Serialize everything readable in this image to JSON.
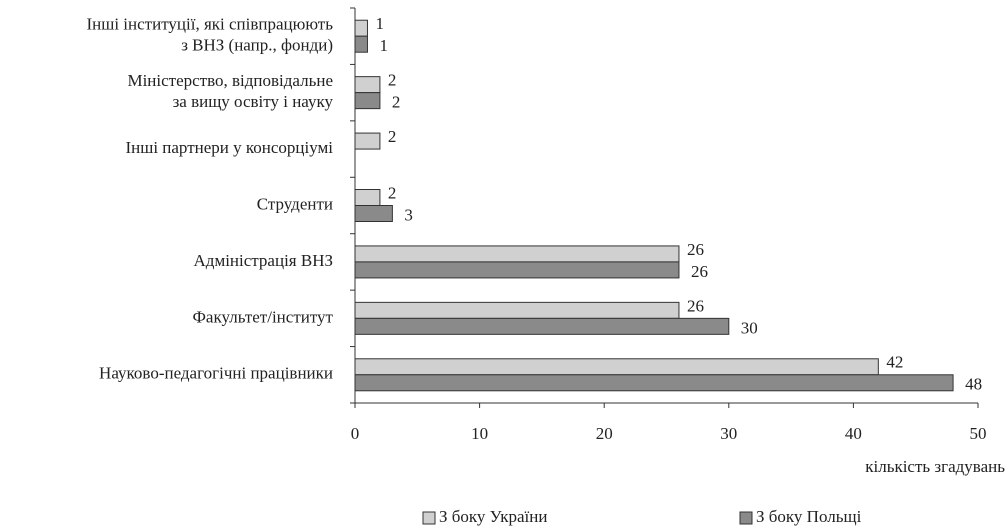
{
  "chart_data": {
    "type": "hbar",
    "categories": [
      [
        "Інші інституції, які співпрацюють",
        "з ВНЗ (напр., фонди)"
      ],
      [
        "Міністерство, відповідальне",
        "за вищу освіту і науку"
      ],
      [
        "Інші партнери у консорціумі"
      ],
      [
        "Струденти"
      ],
      [
        "Адміністрація ВНЗ"
      ],
      [
        "Факультет/інститут"
      ],
      [
        "Науково-педагогічні працівники"
      ]
    ],
    "series": [
      {
        "name": "З боку України",
        "color": "#d0d0d0",
        "values": [
          1,
          2,
          2,
          2,
          26,
          26,
          42
        ]
      },
      {
        "name": "З боку Польщі",
        "color": "#8a8a8a",
        "values": [
          1,
          2,
          null,
          3,
          26,
          30,
          48
        ]
      }
    ],
    "xlim": [
      0,
      50
    ],
    "xticks": [
      0,
      10,
      20,
      30,
      40,
      50
    ],
    "x_label": "кількість згадувань",
    "legend": "bottom"
  }
}
